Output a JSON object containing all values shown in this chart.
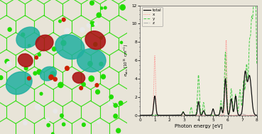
{
  "xlabel": "Photon energy [eV]",
  "ylabel": "$\\sigma_{abs}$ [$10^{15}$ cm$^{-1}$]",
  "xlim": [
    0,
    8
  ],
  "ylim": [
    0,
    12
  ],
  "yticks": [
    0,
    2,
    4,
    6,
    8,
    10,
    12
  ],
  "xticks": [
    0,
    1,
    2,
    3,
    4,
    5,
    6,
    7,
    8
  ],
  "legend_labels": [
    "total",
    "x",
    "y",
    "z"
  ],
  "total_color": "#111111",
  "x_color": "#ff7777",
  "y_color": "#44cc44",
  "z_color": "#aaaaaa",
  "bg_color": "#e8e4d8",
  "plot_bg": "#f0ece0",
  "left_bg": "#000000",
  "fig_width": 3.69,
  "fig_height": 1.89
}
